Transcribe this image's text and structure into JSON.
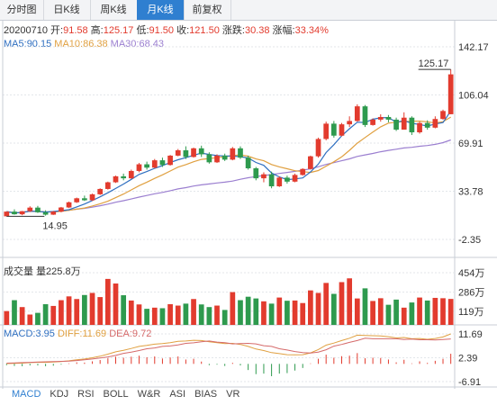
{
  "tabs": [
    {
      "label": "分时图",
      "active": false
    },
    {
      "label": "日K线",
      "active": false
    },
    {
      "label": "周K线",
      "active": false
    },
    {
      "label": "月K线",
      "active": true
    },
    {
      "label": "前复权",
      "active": false
    }
  ],
  "info": {
    "date": "20200710",
    "open_label": "开:",
    "open": "91.58",
    "high_label": "高:",
    "high": "125.17",
    "low_label": "低:",
    "low": "91.50",
    "close_label": "收:",
    "close": "121.50",
    "change_label": "涨跌:",
    "change": "30.38",
    "pct_label": "涨幅:",
    "pct": "33.34%"
  },
  "ma": {
    "ma5_label": "MA5:",
    "ma5": "90.15",
    "ma10_label": "MA10:",
    "ma10": "86.38",
    "ma30_label": "MA30:",
    "ma30": "68.43"
  },
  "volume": {
    "label": "成交量",
    "value_label": "量225.8万"
  },
  "macd": {
    "macd_label": "MACD:",
    "macd": "3.95",
    "dif_label": "DIFF:",
    "dif": "11.69",
    "dea_label": "DEA:",
    "dea": "9.72"
  },
  "indicators": [
    {
      "label": "MACD",
      "active": true
    },
    {
      "label": "KDJ",
      "active": false
    },
    {
      "label": "RSI",
      "active": false
    },
    {
      "label": "BOLL",
      "active": false
    },
    {
      "label": "W&R",
      "active": false
    },
    {
      "label": "ASI",
      "active": false
    },
    {
      "label": "BIAS",
      "active": false
    },
    {
      "label": "VR",
      "active": false
    }
  ],
  "colors": {
    "up": "#e23b2e",
    "down": "#2e9a4e",
    "ma5": "#2f6fc0",
    "ma10": "#e0a040",
    "ma30": "#9b7fd0",
    "dif": "#e0a040",
    "dea": "#d56a6a",
    "grid": "#e3e6ea",
    "active_tab": "#2f7fd0"
  },
  "chart_data": {
    "type": "candlestick",
    "price_axis": {
      "ticks": [
        "142.17",
        "106.04",
        "69.91",
        "33.78",
        "-2.35"
      ],
      "min": -2.35,
      "max": 142.17
    },
    "volume_axis": {
      "ticks": [
        "454万",
        "286万",
        "119万"
      ],
      "min": 0,
      "max": 454
    },
    "macd_axis": {
      "ticks": [
        "11.69",
        "2.39",
        "-6.91"
      ],
      "min": -6.91,
      "max": 11.69
    },
    "annotations": {
      "high": 125.17,
      "high_label": "125.17",
      "low": 14.95,
      "low_label": "14.95"
    },
    "candles": [
      [
        14.95,
        18.5,
        14.95,
        18.5
      ],
      [
        18.5,
        20.2,
        16.2,
        16.5
      ],
      [
        16.5,
        19.0,
        15.8,
        18.8
      ],
      [
        18.8,
        22.5,
        18.2,
        21.5
      ],
      [
        21.5,
        22.8,
        17.5,
        18.0
      ],
      [
        18.0,
        19.5,
        15.5,
        16.2
      ],
      [
        16.2,
        19.0,
        16.0,
        18.5
      ],
      [
        18.5,
        22.0,
        18.0,
        21.6
      ],
      [
        21.6,
        26.0,
        21.2,
        25.5
      ],
      [
        25.5,
        29.0,
        25.0,
        28.5
      ],
      [
        28.5,
        30.5,
        26.5,
        27.0
      ],
      [
        27.0,
        32.0,
        26.5,
        31.5
      ],
      [
        31.5,
        36.0,
        31.0,
        35.5
      ],
      [
        35.5,
        41.0,
        35.0,
        40.5
      ],
      [
        40.5,
        45.5,
        40.0,
        45.0
      ],
      [
        45.0,
        47.0,
        42.0,
        43.5
      ],
      [
        43.5,
        50.0,
        43.0,
        49.0
      ],
      [
        49.0,
        55.0,
        48.0,
        54.0
      ],
      [
        54.0,
        56.0,
        50.0,
        51.5
      ],
      [
        51.5,
        58.0,
        51.0,
        57.0
      ],
      [
        57.0,
        59.0,
        52.0,
        53.5
      ],
      [
        53.5,
        61.0,
        53.0,
        60.5
      ],
      [
        60.5,
        65.5,
        60.0,
        64.5
      ],
      [
        64.5,
        67.5,
        58.0,
        59.5
      ],
      [
        59.5,
        66.5,
        59.0,
        66.0
      ],
      [
        66.0,
        68.0,
        59.5,
        61.5
      ],
      [
        61.5,
        63.0,
        54.5,
        55.5
      ],
      [
        55.5,
        61.5,
        55.0,
        60.5
      ],
      [
        60.5,
        62.0,
        56.5,
        57.5
      ],
      [
        57.5,
        67.0,
        57.0,
        66.0
      ],
      [
        66.0,
        67.5,
        58.0,
        59.0
      ],
      [
        59.0,
        60.5,
        50.0,
        51.0
      ],
      [
        51.0,
        52.0,
        42.0,
        43.5
      ],
      [
        43.5,
        48.0,
        40.5,
        46.5
      ],
      [
        46.5,
        48.5,
        36.0,
        37.5
      ],
      [
        37.5,
        45.0,
        37.0,
        44.0
      ],
      [
        44.0,
        45.5,
        39.5,
        41.0
      ],
      [
        41.0,
        47.0,
        40.5,
        46.0
      ],
      [
        46.0,
        51.0,
        45.5,
        50.5
      ],
      [
        50.5,
        60.5,
        50.0,
        60.0
      ],
      [
        60.0,
        74.0,
        59.0,
        73.0
      ],
      [
        73.0,
        86.0,
        72.0,
        84.5
      ],
      [
        84.5,
        86.5,
        74.0,
        75.5
      ],
      [
        75.5,
        85.0,
        75.0,
        84.0
      ],
      [
        84.0,
        90.0,
        82.0,
        86.5
      ],
      [
        86.5,
        99.0,
        86.0,
        97.5
      ],
      [
        97.5,
        98.5,
        82.0,
        83.5
      ],
      [
        83.5,
        88.5,
        83.0,
        87.5
      ],
      [
        87.5,
        91.5,
        86.0,
        89.5
      ],
      [
        89.5,
        91.0,
        85.5,
        87.5
      ],
      [
        87.5,
        89.0,
        79.0,
        80.0
      ],
      [
        80.0,
        93.0,
        80.0,
        89.0
      ],
      [
        89.0,
        90.0,
        76.0,
        78.0
      ],
      [
        78.0,
        86.0,
        77.0,
        85.0
      ],
      [
        85.0,
        87.0,
        80.0,
        81.5
      ],
      [
        81.5,
        90.0,
        81.0,
        88.0
      ],
      [
        88.0,
        95.0,
        87.5,
        94.0
      ],
      [
        91.58,
        125.17,
        91.5,
        121.5
      ]
    ],
    "volumes": [
      120,
      215,
      155,
      90,
      105,
      180,
      165,
      215,
      248,
      225,
      260,
      278,
      242,
      400,
      360,
      258,
      212,
      178,
      140,
      150,
      145,
      180,
      168,
      185,
      225,
      178,
      155,
      168,
      130,
      285,
      215,
      245,
      230,
      205,
      185,
      238,
      210,
      212,
      190,
      300,
      278,
      365,
      270,
      372,
      405,
      230,
      318,
      208,
      232,
      175,
      220,
      150,
      195,
      238,
      212,
      235,
      232,
      225.8
    ],
    "macd": [
      -0.5,
      -0.8,
      -0.9,
      -0.6,
      -0.6,
      -0.9,
      -0.7,
      -0.3,
      0.2,
      0.6,
      0.5,
      1.0,
      1.5,
      2.2,
      2.8,
      2.4,
      2.8,
      3.2,
      2.6,
      2.9,
      2.1,
      2.5,
      2.9,
      1.7,
      2.0,
      0.9,
      -0.5,
      -0.3,
      -0.8,
      0.4,
      -0.6,
      -2.4,
      -4.0,
      -3.8,
      -4.8,
      -3.8,
      -3.6,
      -2.6,
      -1.6,
      0.2,
      2.0,
      3.6,
      2.4,
      3.0,
      3.2,
      4.2,
      2.2,
      2.4,
      2.3,
      1.7,
      0.6,
      1.6,
      0.2,
      1.0,
      0.4,
      1.2,
      2.0,
      3.95
    ],
    "dif": [
      0.1,
      0.2,
      0.3,
      0.5,
      0.6,
      0.6,
      0.7,
      0.9,
      1.2,
      1.6,
      1.9,
      2.4,
      3.0,
      3.8,
      4.7,
      5.3,
      6.0,
      6.8,
      7.2,
      7.7,
      7.9,
      8.3,
      8.8,
      8.9,
      9.2,
      9.1,
      8.6,
      8.3,
      7.9,
      8.0,
      7.6,
      6.8,
      5.8,
      5.2,
      4.4,
      4.0,
      3.6,
      3.5,
      3.6,
      4.3,
      5.6,
      7.3,
      8.1,
      9.1,
      10.0,
      11.2,
      11.1,
      11.0,
      10.9,
      10.6,
      10.1,
      10.3,
      9.8,
      9.9,
      9.6,
      9.9,
      10.5,
      11.69
    ],
    "dea": [
      0.3,
      0.4,
      0.5,
      0.6,
      0.7,
      0.8,
      0.9,
      1.0,
      1.1,
      1.3,
      1.6,
      1.9,
      2.3,
      2.7,
      3.3,
      4.1,
      4.6,
      5.2,
      5.9,
      6.2,
      6.8,
      7.0,
      7.4,
      8.0,
      8.2,
      8.6,
      8.9,
      8.5,
      8.3,
      7.8,
      7.9,
      8.0,
      7.8,
      7.1,
      6.8,
      5.9,
      5.4,
      4.8,
      4.4,
      4.2,
      4.6,
      5.5,
      6.9,
      7.6,
      8.4,
      9.1,
      10.0,
      9.8,
      9.8,
      9.8,
      9.8,
      9.5,
      9.7,
      9.4,
      9.4,
      9.3,
      9.5,
      9.72
    ]
  }
}
